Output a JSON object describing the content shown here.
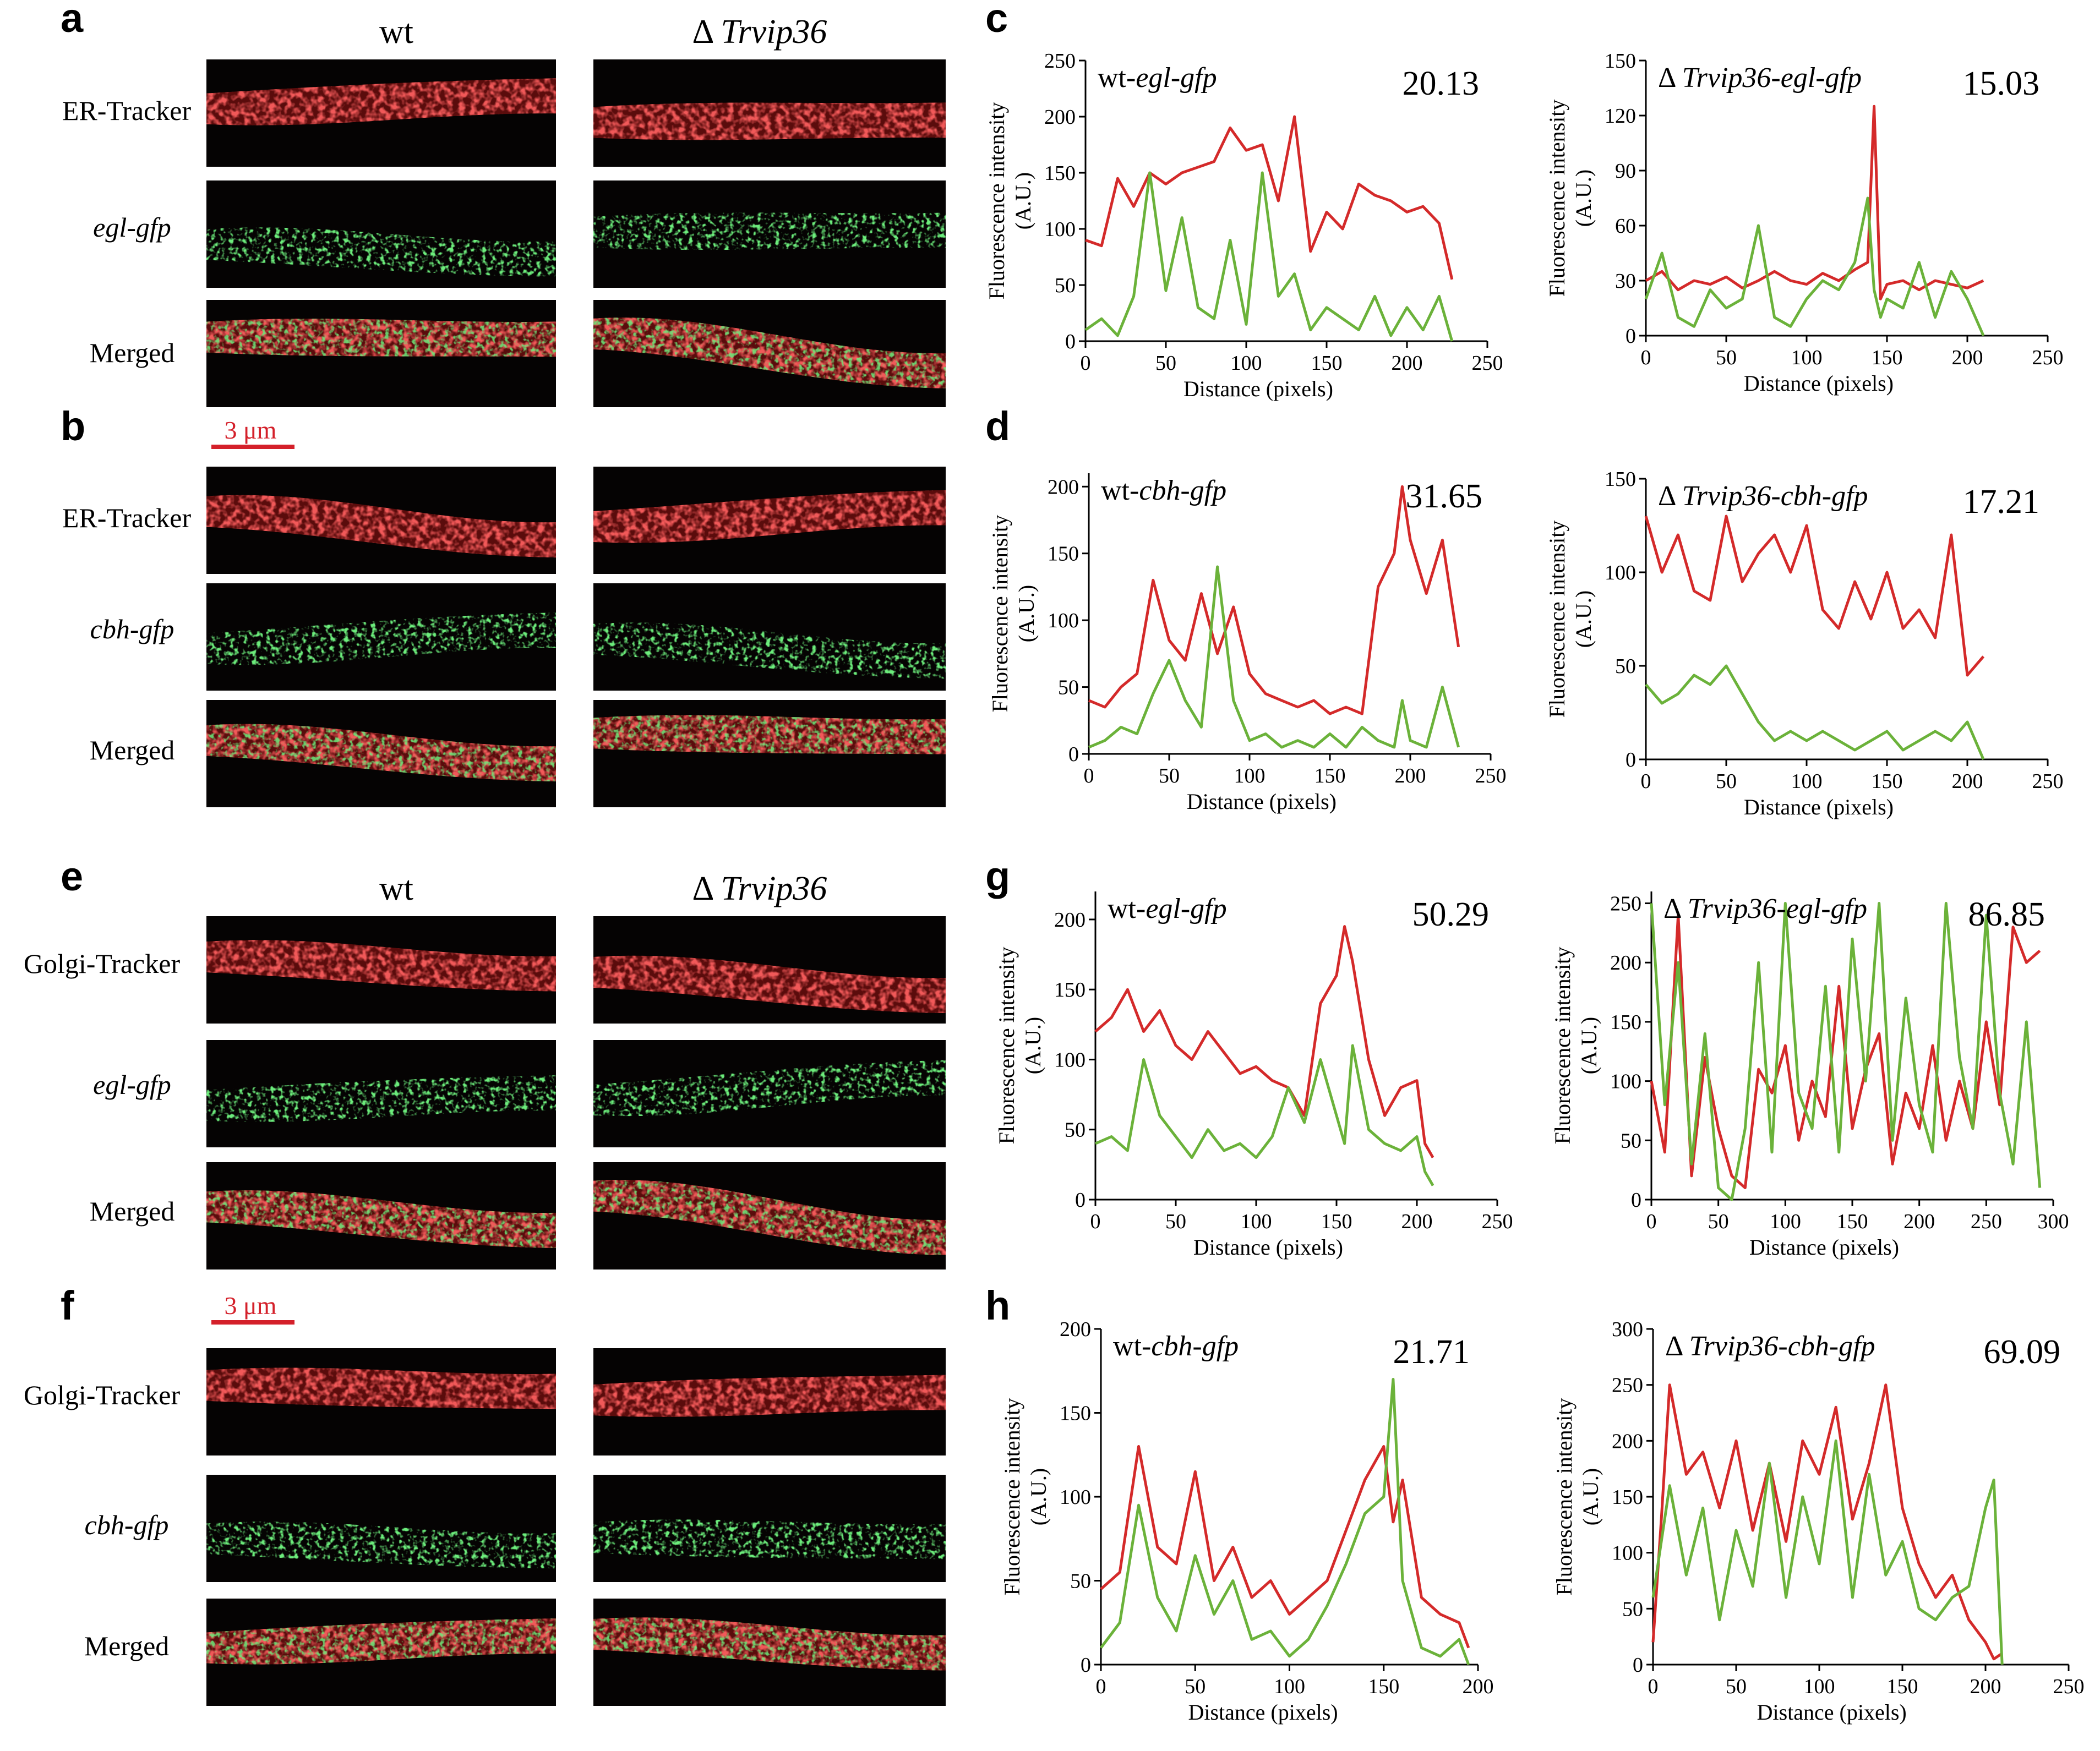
{
  "colors": {
    "red": "#d42a2a",
    "green": "#6bb23a",
    "scale": "#d4202a",
    "micrograph_bg": "#050303"
  },
  "panels": {
    "a": "a",
    "b": "b",
    "c": "c",
    "d": "d",
    "e": "e",
    "f": "f",
    "g": "g",
    "h": "h"
  },
  "columns": {
    "wt": "wt",
    "delta": "Δ",
    "mutant": "Trvip36"
  },
  "scale_bar": "3 μm",
  "micrograph_rows": {
    "a": [
      "ER-Tracker",
      "egl-gfp",
      "Merged"
    ],
    "b": [
      "ER-Tracker",
      "cbh-gfp",
      "Merged"
    ],
    "e": [
      "Golgi-Tracker",
      "egl-gfp",
      "Merged"
    ],
    "f": [
      "Golgi-Tracker",
      "cbh-gfp",
      "Merged"
    ]
  },
  "axis_text": {
    "ylabel_line1": "Fluorescence intensity",
    "ylabel_line2": "(A.U.)",
    "xlabel": "Distance (pixels)"
  },
  "chart_data": [
    {
      "panel": "c",
      "type": "line",
      "title_prefix": "wt-",
      "title_italic": "egl-gfp",
      "pearson": "20.13",
      "xlabel": "Distance (pixels)",
      "ylabel": "Fluorescence intensity (A.U.)",
      "xlim": [
        0,
        250
      ],
      "ylim": [
        0,
        250
      ],
      "xticks": [
        0,
        50,
        100,
        150,
        200,
        250
      ],
      "yticks": [
        0,
        50,
        100,
        150,
        200,
        250
      ],
      "series": [
        {
          "name": "red",
          "x": [
            0,
            10,
            20,
            30,
            40,
            50,
            60,
            70,
            80,
            90,
            100,
            110,
            120,
            130,
            140,
            150,
            160,
            170,
            180,
            190,
            200,
            210,
            220,
            228
          ],
          "y": [
            90,
            85,
            145,
            120,
            150,
            140,
            150,
            155,
            160,
            190,
            170,
            175,
            125,
            200,
            80,
            115,
            100,
            140,
            130,
            125,
            115,
            120,
            105,
            55
          ]
        },
        {
          "name": "green",
          "x": [
            0,
            10,
            20,
            30,
            40,
            50,
            60,
            70,
            80,
            90,
            100,
            110,
            120,
            130,
            140,
            150,
            160,
            170,
            180,
            190,
            200,
            210,
            220,
            228
          ],
          "y": [
            10,
            20,
            5,
            40,
            150,
            45,
            110,
            30,
            20,
            90,
            15,
            150,
            40,
            60,
            10,
            30,
            20,
            10,
            40,
            5,
            30,
            10,
            40,
            0
          ]
        }
      ]
    },
    {
      "panel": "c",
      "type": "line",
      "title_prefix": "Δ ",
      "title_italic": "Trvip36-egl-gfp",
      "pearson": "15.03",
      "xlabel": "Distance (pixels)",
      "ylabel": "Fluorescence intensity (A.U.)",
      "xlim": [
        0,
        250
      ],
      "ylim": [
        0,
        150
      ],
      "xticks": [
        0,
        50,
        100,
        150,
        200,
        250
      ],
      "yticks": [
        0,
        30,
        60,
        90,
        120,
        150
      ],
      "series": [
        {
          "name": "red",
          "x": [
            0,
            10,
            20,
            30,
            40,
            50,
            60,
            70,
            80,
            90,
            100,
            110,
            120,
            130,
            138,
            142,
            146,
            150,
            160,
            170,
            180,
            190,
            200,
            210
          ],
          "y": [
            30,
            35,
            25,
            30,
            28,
            32,
            26,
            30,
            35,
            30,
            28,
            34,
            30,
            36,
            40,
            125,
            20,
            28,
            30,
            25,
            30,
            28,
            26,
            30
          ]
        },
        {
          "name": "green",
          "x": [
            0,
            10,
            20,
            30,
            40,
            50,
            60,
            70,
            80,
            90,
            100,
            110,
            120,
            130,
            138,
            142,
            146,
            150,
            160,
            170,
            180,
            190,
            200,
            210
          ],
          "y": [
            20,
            45,
            10,
            5,
            25,
            15,
            20,
            60,
            10,
            5,
            20,
            30,
            25,
            40,
            75,
            25,
            10,
            20,
            15,
            40,
            10,
            35,
            20,
            0
          ]
        }
      ]
    },
    {
      "panel": "d",
      "type": "line",
      "title_prefix": "wt-",
      "title_italic": "cbh-gfp",
      "pearson": "31.65",
      "xlabel": "Distance (pixels)",
      "ylabel": "Fluorescence intensity (A.U.)",
      "xlim": [
        0,
        250
      ],
      "ylim": [
        0,
        210
      ],
      "xticks": [
        0,
        50,
        100,
        150,
        200,
        250
      ],
      "yticks": [
        0,
        50,
        100,
        150,
        200
      ],
      "series": [
        {
          "name": "red",
          "x": [
            0,
            10,
            20,
            30,
            40,
            50,
            60,
            70,
            80,
            90,
            100,
            110,
            120,
            130,
            140,
            150,
            160,
            170,
            180,
            190,
            195,
            200,
            210,
            220,
            230
          ],
          "y": [
            40,
            35,
            50,
            60,
            130,
            85,
            70,
            120,
            75,
            110,
            60,
            45,
            40,
            35,
            40,
            30,
            35,
            30,
            125,
            150,
            200,
            160,
            120,
            160,
            80
          ]
        },
        {
          "name": "green",
          "x": [
            0,
            10,
            20,
            30,
            40,
            50,
            60,
            70,
            80,
            90,
            100,
            110,
            120,
            130,
            140,
            150,
            160,
            170,
            180,
            190,
            195,
            200,
            210,
            220,
            230
          ],
          "y": [
            5,
            10,
            20,
            15,
            45,
            70,
            40,
            20,
            140,
            40,
            10,
            15,
            5,
            10,
            5,
            15,
            5,
            20,
            10,
            5,
            40,
            10,
            5,
            50,
            5
          ]
        }
      ]
    },
    {
      "panel": "d",
      "type": "line",
      "title_prefix": "Δ ",
      "title_italic": "Trvip36-cbh-gfp",
      "pearson": "17.21",
      "xlabel": "Distance (pixels)",
      "ylabel": "Fluorescence intensity (A.U.)",
      "xlim": [
        0,
        250
      ],
      "ylim": [
        0,
        150
      ],
      "xticks": [
        0,
        50,
        100,
        150,
        200,
        250
      ],
      "yticks": [
        0,
        50,
        100,
        150
      ],
      "series": [
        {
          "name": "red",
          "x": [
            0,
            10,
            20,
            30,
            40,
            50,
            60,
            70,
            80,
            90,
            100,
            110,
            120,
            130,
            140,
            150,
            160,
            170,
            180,
            190,
            200,
            210
          ],
          "y": [
            130,
            100,
            120,
            90,
            85,
            130,
            95,
            110,
            120,
            100,
            125,
            80,
            70,
            95,
            75,
            100,
            70,
            80,
            65,
            120,
            45,
            55
          ]
        },
        {
          "name": "green",
          "x": [
            0,
            10,
            20,
            30,
            40,
            50,
            60,
            70,
            80,
            90,
            100,
            110,
            120,
            130,
            140,
            150,
            160,
            170,
            180,
            190,
            200,
            210
          ],
          "y": [
            40,
            30,
            35,
            45,
            40,
            50,
            35,
            20,
            10,
            15,
            10,
            15,
            10,
            5,
            10,
            15,
            5,
            10,
            15,
            10,
            20,
            0
          ]
        }
      ]
    },
    {
      "panel": "g",
      "type": "line",
      "title_prefix": "wt-",
      "title_italic": "egl-gfp",
      "pearson": "50.29",
      "xlabel": "Distance (pixels)",
      "ylabel": "Fluorescence intensity (A.U.)",
      "xlim": [
        0,
        250
      ],
      "ylim": [
        0,
        220
      ],
      "xticks": [
        0,
        50,
        100,
        150,
        200,
        250
      ],
      "yticks": [
        0,
        50,
        100,
        150,
        200
      ],
      "series": [
        {
          "name": "red",
          "x": [
            0,
            10,
            20,
            30,
            40,
            50,
            60,
            70,
            80,
            90,
            100,
            110,
            120,
            130,
            140,
            150,
            155,
            160,
            170,
            180,
            190,
            200,
            205,
            210
          ],
          "y": [
            120,
            130,
            150,
            120,
            135,
            110,
            100,
            120,
            105,
            90,
            95,
            85,
            80,
            60,
            140,
            160,
            195,
            170,
            100,
            60,
            80,
            85,
            40,
            30
          ]
        },
        {
          "name": "green",
          "x": [
            0,
            10,
            20,
            30,
            40,
            50,
            60,
            70,
            80,
            90,
            100,
            110,
            120,
            130,
            140,
            150,
            155,
            160,
            170,
            180,
            190,
            200,
            205,
            210
          ],
          "y": [
            40,
            45,
            35,
            100,
            60,
            45,
            30,
            50,
            35,
            40,
            30,
            45,
            80,
            55,
            100,
            60,
            40,
            110,
            50,
            40,
            35,
            45,
            20,
            10
          ]
        }
      ]
    },
    {
      "panel": "g",
      "type": "line",
      "title_prefix": "Δ ",
      "title_italic": "Trvip36-egl-gfp",
      "pearson": "86.85",
      "xlabel": "Distance (pixels)",
      "ylabel": "Fluorescence intensity (A.U.)",
      "xlim": [
        0,
        300
      ],
      "ylim": [
        0,
        260
      ],
      "xticks": [
        0,
        50,
        100,
        150,
        200,
        250,
        300
      ],
      "yticks": [
        0,
        50,
        100,
        150,
        200,
        250
      ],
      "series": [
        {
          "name": "red",
          "x": [
            0,
            10,
            20,
            30,
            40,
            50,
            60,
            70,
            80,
            90,
            100,
            110,
            120,
            130,
            140,
            150,
            160,
            170,
            180,
            190,
            200,
            210,
            220,
            230,
            240,
            250,
            260,
            270,
            280,
            290
          ],
          "y": [
            100,
            40,
            240,
            20,
            120,
            60,
            20,
            10,
            110,
            90,
            130,
            50,
            100,
            70,
            180,
            60,
            110,
            140,
            30,
            90,
            60,
            130,
            50,
            100,
            60,
            150,
            80,
            230,
            200,
            210
          ]
        },
        {
          "name": "green",
          "x": [
            0,
            10,
            20,
            30,
            40,
            50,
            60,
            70,
            80,
            90,
            100,
            110,
            120,
            130,
            140,
            150,
            160,
            170,
            180,
            190,
            200,
            210,
            220,
            230,
            240,
            250,
            260,
            270,
            280,
            290
          ],
          "y": [
            250,
            80,
            200,
            30,
            140,
            10,
            0,
            60,
            200,
            40,
            250,
            90,
            60,
            180,
            40,
            220,
            100,
            250,
            50,
            170,
            80,
            40,
            250,
            120,
            60,
            240,
            90,
            30,
            150,
            10
          ]
        }
      ]
    },
    {
      "panel": "h",
      "type": "line",
      "title_prefix": "wt-",
      "title_italic": "cbh-gfp",
      "pearson": "21.71",
      "xlabel": "Distance (pixels)",
      "ylabel": "Fluorescence intensity (A.U.)",
      "xlim": [
        0,
        200
      ],
      "ylim": [
        0,
        200
      ],
      "xticks": [
        0,
        50,
        100,
        150,
        200
      ],
      "yticks": [
        0,
        50,
        100,
        150,
        200
      ],
      "series": [
        {
          "name": "red",
          "x": [
            0,
            10,
            20,
            30,
            40,
            50,
            60,
            70,
            80,
            90,
            100,
            110,
            120,
            130,
            140,
            150,
            155,
            160,
            170,
            180,
            190,
            195
          ],
          "y": [
            45,
            55,
            130,
            70,
            60,
            115,
            50,
            70,
            40,
            50,
            30,
            40,
            50,
            80,
            110,
            130,
            85,
            110,
            40,
            30,
            25,
            10
          ]
        },
        {
          "name": "green",
          "x": [
            0,
            10,
            20,
            30,
            40,
            50,
            60,
            70,
            80,
            90,
            100,
            110,
            120,
            130,
            140,
            150,
            155,
            160,
            170,
            180,
            190,
            195
          ],
          "y": [
            10,
            25,
            95,
            40,
            20,
            65,
            30,
            50,
            15,
            20,
            5,
            15,
            35,
            60,
            90,
            100,
            170,
            50,
            10,
            5,
            15,
            0
          ]
        }
      ]
    },
    {
      "panel": "h",
      "type": "line",
      "title_prefix": "Δ ",
      "title_italic": "Trvip36-cbh-gfp",
      "pearson": "69.09",
      "xlabel": "Distance (pixels)",
      "ylabel": "Fluorescence intensity (A.U.)",
      "xlim": [
        0,
        250
      ],
      "ylim": [
        0,
        300
      ],
      "xticks": [
        0,
        50,
        100,
        150,
        200,
        250
      ],
      "yticks": [
        0,
        50,
        100,
        150,
        200,
        250,
        300
      ],
      "series": [
        {
          "name": "red",
          "x": [
            0,
            5,
            10,
            20,
            30,
            40,
            50,
            60,
            70,
            80,
            90,
            100,
            110,
            120,
            130,
            140,
            150,
            160,
            170,
            180,
            190,
            200,
            205,
            210
          ],
          "y": [
            20,
            130,
            250,
            170,
            190,
            140,
            200,
            120,
            180,
            110,
            200,
            170,
            230,
            130,
            180,
            250,
            140,
            90,
            60,
            80,
            40,
            20,
            5,
            10
          ]
        },
        {
          "name": "green",
          "x": [
            0,
            5,
            10,
            20,
            30,
            40,
            50,
            60,
            70,
            80,
            90,
            100,
            110,
            120,
            130,
            140,
            150,
            160,
            170,
            180,
            190,
            200,
            205,
            210
          ],
          "y": [
            60,
            110,
            160,
            80,
            140,
            40,
            120,
            70,
            180,
            60,
            150,
            90,
            200,
            60,
            170,
            80,
            110,
            50,
            40,
            60,
            70,
            140,
            165,
            0
          ]
        }
      ]
    }
  ]
}
